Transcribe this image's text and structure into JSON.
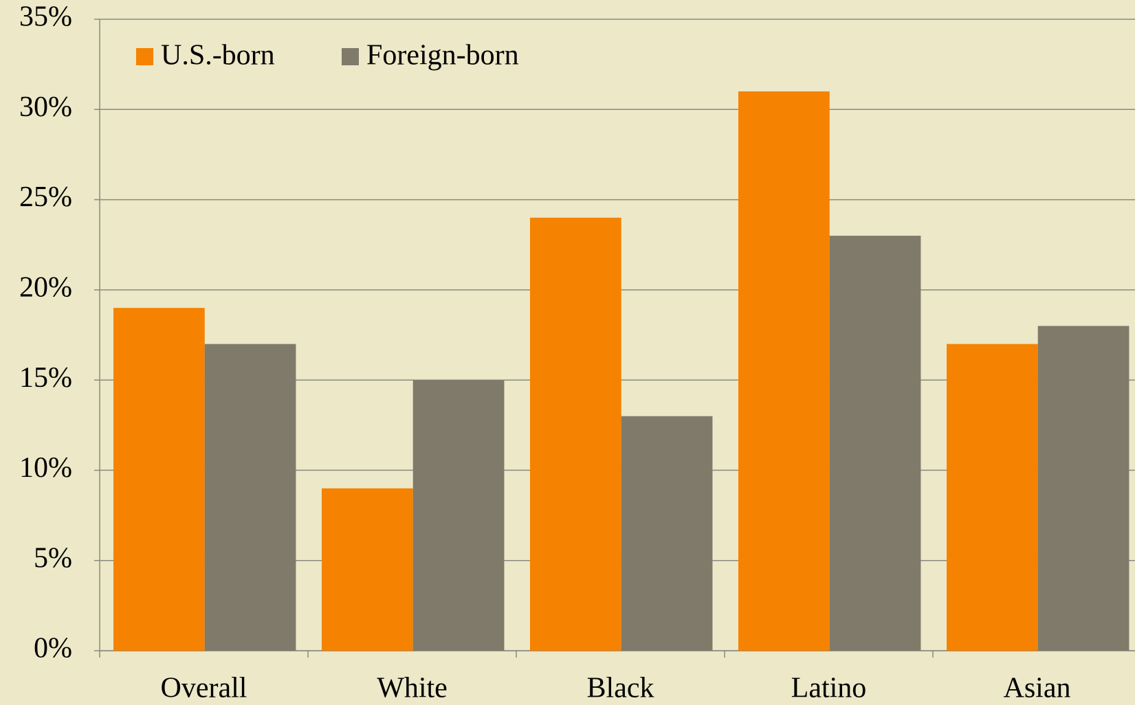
{
  "chart_data": {
    "type": "bar",
    "categories": [
      "Overall",
      "White",
      "Black",
      "Latino",
      "Asian"
    ],
    "series": [
      {
        "name": "U.S.-born",
        "color": "#f58200",
        "values": [
          19,
          9,
          24,
          31,
          17
        ]
      },
      {
        "name": "Foreign-born",
        "color": "#807a6b",
        "values": [
          17,
          15,
          13,
          23,
          18
        ]
      }
    ],
    "ylim": [
      0,
      35
    ],
    "yticks": [
      {
        "value": 0,
        "label": "0%"
      },
      {
        "value": 5,
        "label": "5%"
      },
      {
        "value": 10,
        "label": "10%"
      },
      {
        "value": 15,
        "label": "15%"
      },
      {
        "value": 20,
        "label": "20%"
      },
      {
        "value": 25,
        "label": "25%"
      },
      {
        "value": 30,
        "label": "30%"
      },
      {
        "value": 35,
        "label": "35%"
      }
    ],
    "grid": true,
    "legend": "top-left"
  }
}
